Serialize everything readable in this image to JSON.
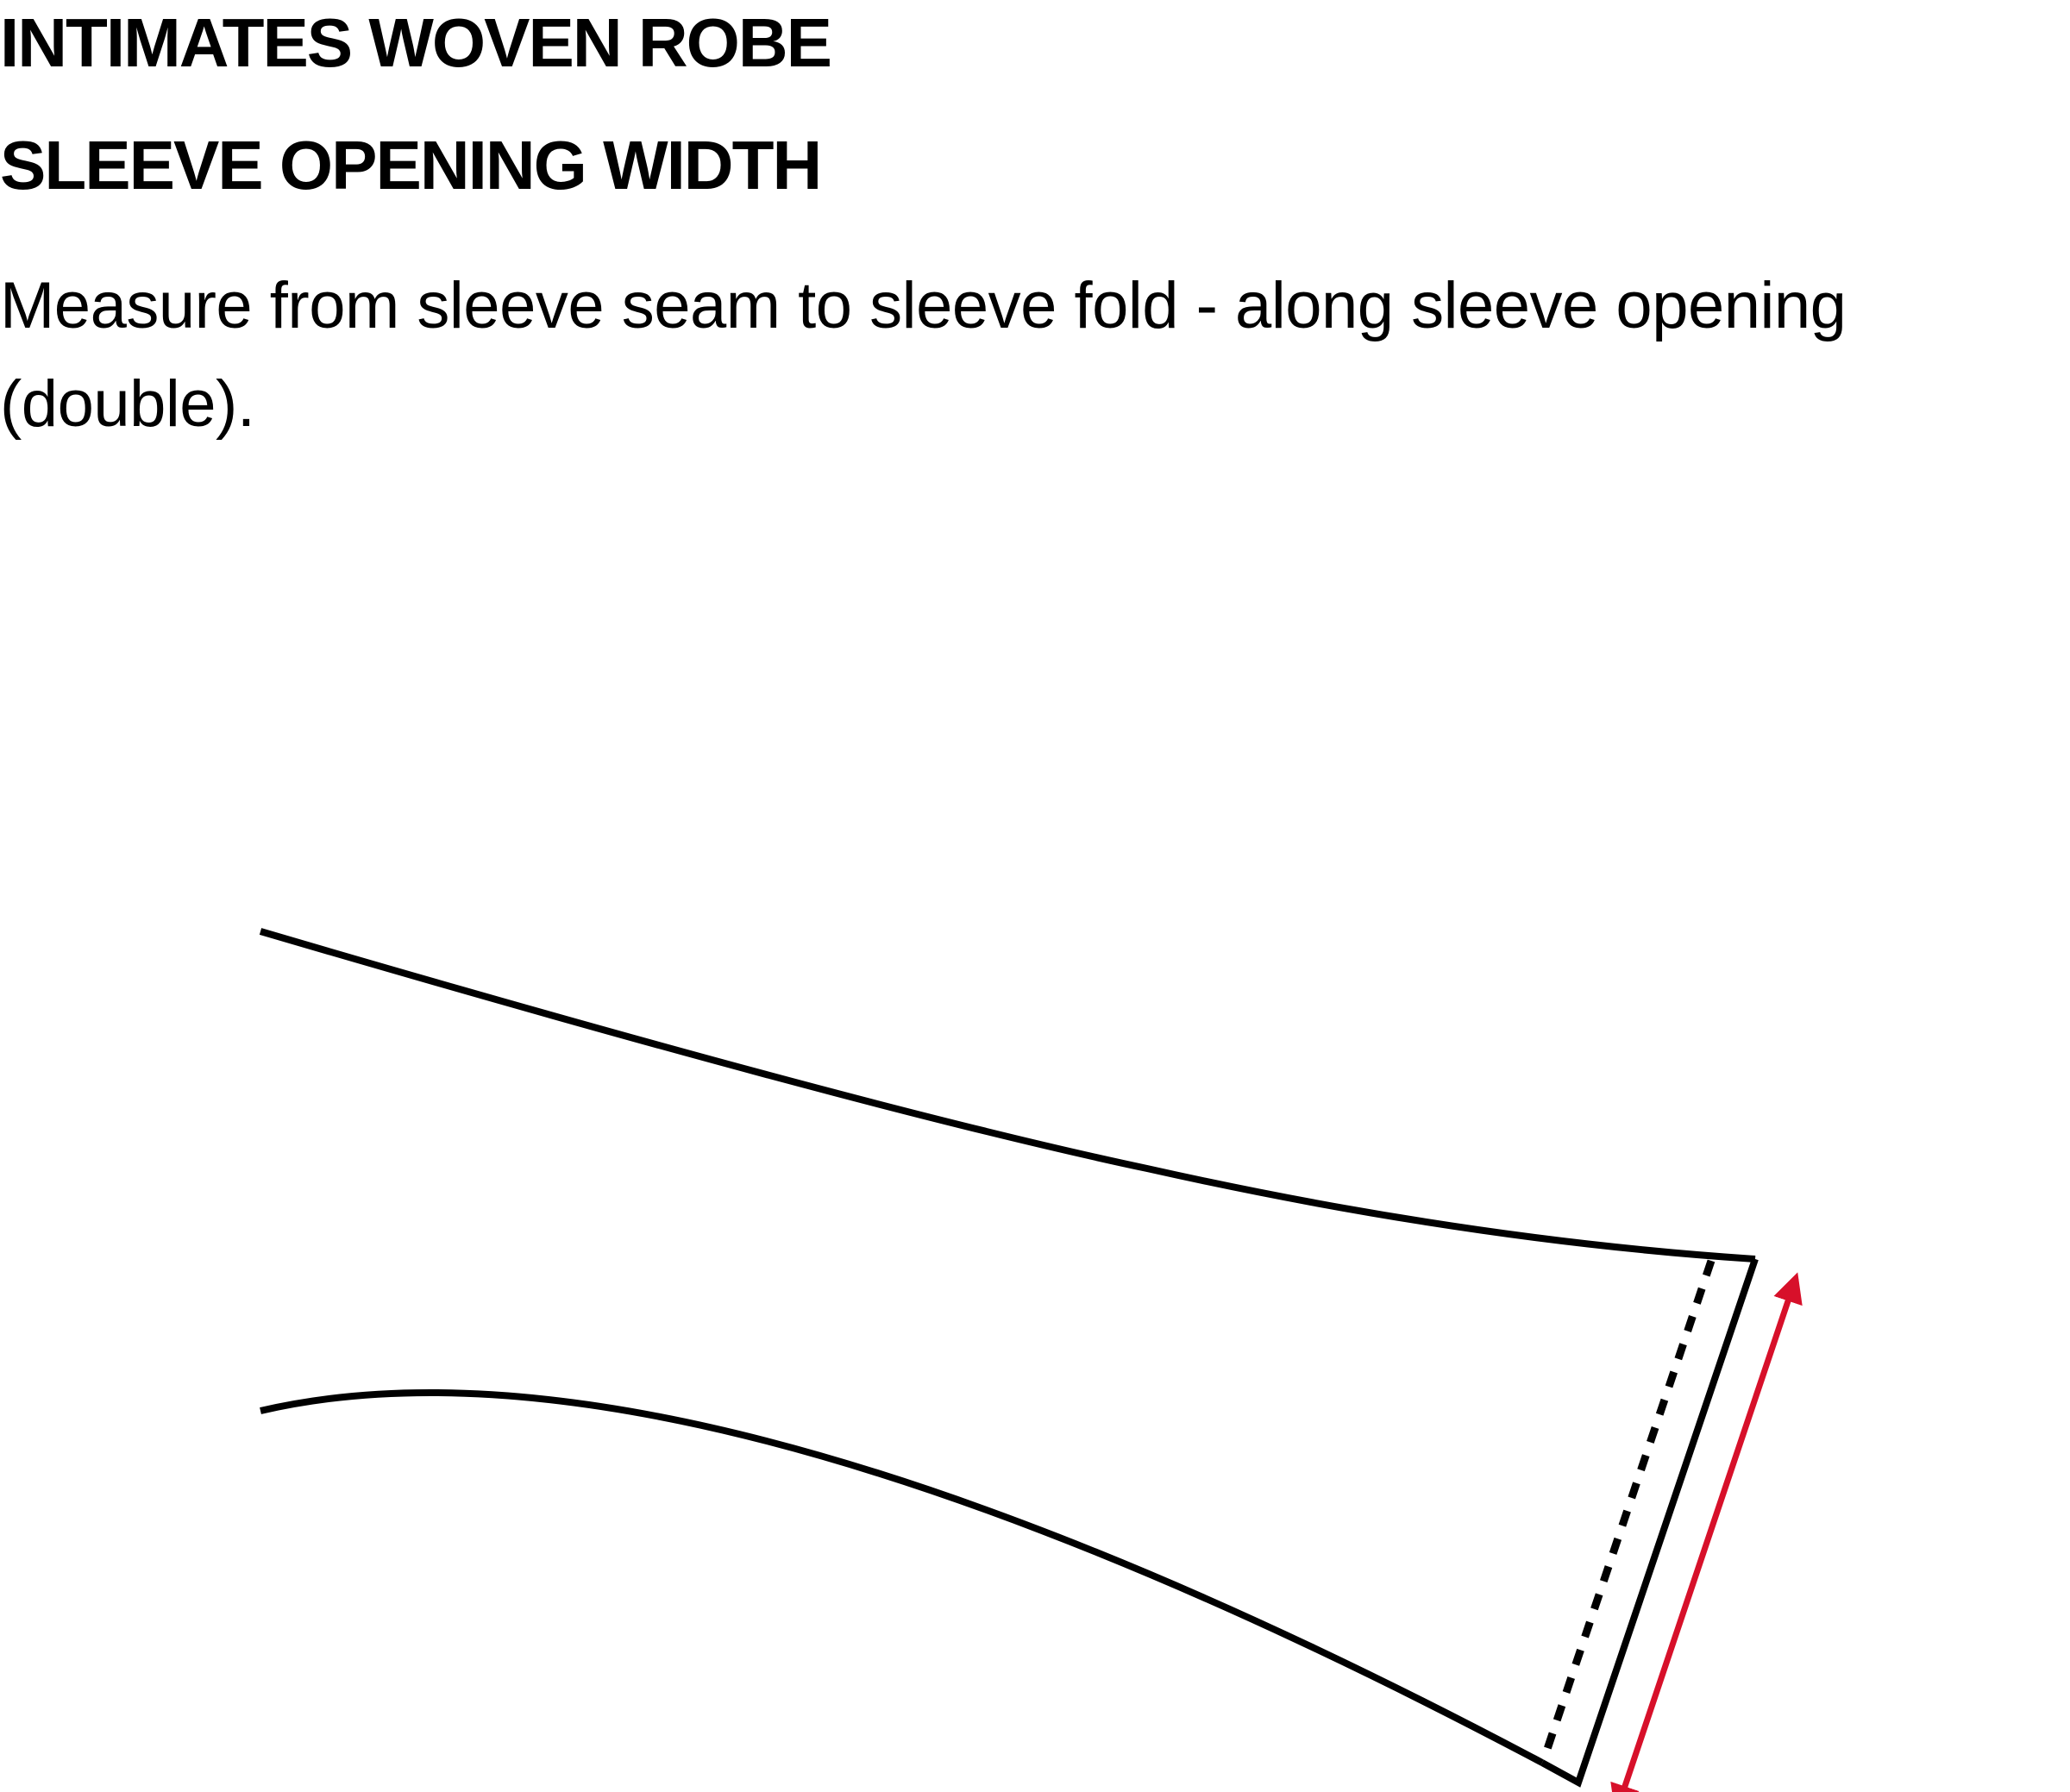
{
  "title": "INTIMATES WOVEN ROBE",
  "subtitle": "SLEEVE OPENING WIDTH",
  "instructions": "Measure from sleeve seam to sleeve fold - along sleeve opening (double).",
  "colors": {
    "outline": "#000000",
    "measurement_arrow": "#d7102a",
    "background": "#ffffff"
  },
  "diagram": {
    "parts": [
      "sleeve-outline",
      "sleeve-opening-dashed-line",
      "measurement-arrow"
    ]
  }
}
